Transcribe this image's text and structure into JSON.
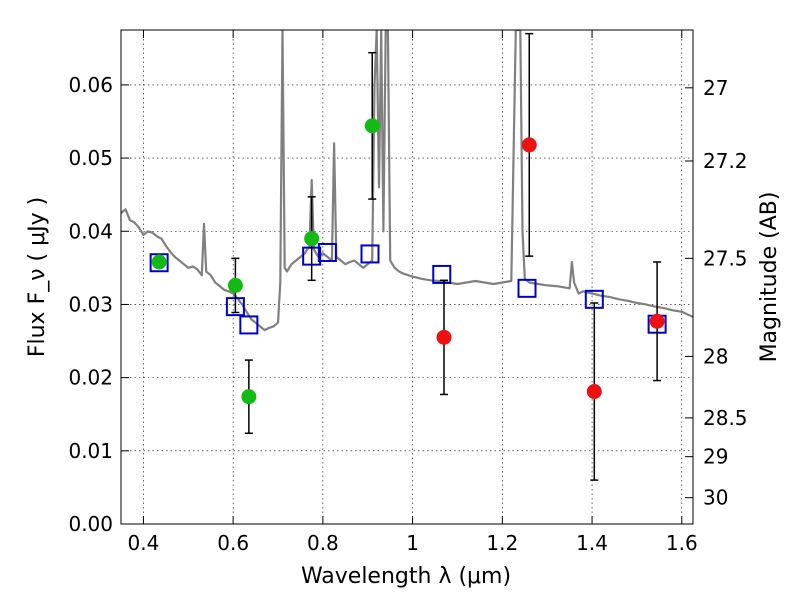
{
  "chart_data": {
    "type": "scatter",
    "xlabel": "Wavelength  λ (μm)",
    "ylabel": "Flux  F_ν  ( μJy )",
    "ylabel_right": "Magnitude (AB)",
    "xlim": [
      0.35,
      1.625
    ],
    "ylim": [
      0.0,
      0.0675
    ],
    "x_ticks": [
      0.4,
      0.6,
      0.8,
      1.0,
      1.2,
      1.4,
      1.6
    ],
    "x_tick_labels": [
      "0.4",
      "0.6",
      "0.8",
      "1",
      "1.2",
      "1.4",
      "1.6"
    ],
    "y_ticks": [
      0.0,
      0.01,
      0.02,
      0.03,
      0.04,
      0.05,
      0.06
    ],
    "y_tick_labels": [
      "0.00",
      "0.01",
      "0.02",
      "0.03",
      "0.04",
      "0.05",
      "0.06"
    ],
    "right_ticks": [
      {
        "flux": 0.0596,
        "label": "27"
      },
      {
        "flux": 0.0496,
        "label": "27.2"
      },
      {
        "flux": 0.0363,
        "label": "27.5"
      },
      {
        "flux": 0.0229,
        "label": "28"
      },
      {
        "flux": 0.0145,
        "label": "28.5"
      },
      {
        "flux": 0.0092,
        "label": "29"
      },
      {
        "flux": 0.0036,
        "label": "30"
      }
    ],
    "grid": true,
    "series": [
      {
        "kind": "line",
        "color": "#808080",
        "points": [
          [
            0.35,
            0.0425
          ],
          [
            0.36,
            0.043
          ],
          [
            0.37,
            0.0415
          ],
          [
            0.38,
            0.0412
          ],
          [
            0.39,
            0.0405
          ],
          [
            0.4,
            0.0395
          ],
          [
            0.41,
            0.04
          ],
          [
            0.42,
            0.0398
          ],
          [
            0.43,
            0.0393
          ],
          [
            0.44,
            0.039
          ],
          [
            0.45,
            0.038
          ],
          [
            0.46,
            0.0372
          ],
          [
            0.47,
            0.0365
          ],
          [
            0.48,
            0.036
          ],
          [
            0.49,
            0.0355
          ],
          [
            0.5,
            0.035
          ],
          [
            0.51,
            0.0352
          ],
          [
            0.52,
            0.0348
          ],
          [
            0.53,
            0.034
          ],
          [
            0.535,
            0.041
          ],
          [
            0.54,
            0.0345
          ],
          [
            0.55,
            0.034
          ],
          [
            0.56,
            0.033
          ],
          [
            0.57,
            0.0325
          ],
          [
            0.58,
            0.032
          ],
          [
            0.59,
            0.0318
          ],
          [
            0.6,
            0.0315
          ],
          [
            0.61,
            0.0308
          ],
          [
            0.62,
            0.03
          ],
          [
            0.63,
            0.029
          ],
          [
            0.64,
            0.028
          ],
          [
            0.65,
            0.0275
          ],
          [
            0.66,
            0.027
          ],
          [
            0.67,
            0.0265
          ],
          [
            0.68,
            0.0268
          ],
          [
            0.69,
            0.027
          ],
          [
            0.7,
            0.0275
          ],
          [
            0.705,
            0.033
          ],
          [
            0.71,
            0.0675
          ],
          [
            0.715,
            0.035
          ],
          [
            0.72,
            0.0345
          ],
          [
            0.73,
            0.0355
          ],
          [
            0.74,
            0.036
          ],
          [
            0.75,
            0.0365
          ],
          [
            0.76,
            0.037
          ],
          [
            0.77,
            0.038
          ],
          [
            0.775,
            0.047
          ],
          [
            0.78,
            0.0375
          ],
          [
            0.79,
            0.0365
          ],
          [
            0.8,
            0.037
          ],
          [
            0.81,
            0.0365
          ],
          [
            0.82,
            0.036
          ],
          [
            0.825,
            0.052
          ],
          [
            0.83,
            0.0365
          ],
          [
            0.84,
            0.036
          ],
          [
            0.85,
            0.0355
          ],
          [
            0.86,
            0.0358
          ],
          [
            0.87,
            0.036
          ],
          [
            0.88,
            0.0355
          ],
          [
            0.89,
            0.035
          ],
          [
            0.9,
            0.0355
          ],
          [
            0.91,
            0.036
          ],
          [
            0.915,
            0.06
          ],
          [
            0.92,
            0.0675
          ],
          [
            0.925,
            0.046
          ],
          [
            0.93,
            0.0675
          ],
          [
            0.935,
            0.04
          ],
          [
            0.94,
            0.0675
          ],
          [
            0.945,
            0.0675
          ],
          [
            0.95,
            0.036
          ],
          [
            0.96,
            0.035
          ],
          [
            0.97,
            0.0345
          ],
          [
            0.98,
            0.0342
          ],
          [
            0.99,
            0.034
          ],
          [
            1.0,
            0.0338
          ],
          [
            1.02,
            0.0335
          ],
          [
            1.04,
            0.0333
          ],
          [
            1.06,
            0.0332
          ],
          [
            1.08,
            0.033
          ],
          [
            1.1,
            0.0328
          ],
          [
            1.12,
            0.033
          ],
          [
            1.14,
            0.0332
          ],
          [
            1.16,
            0.033
          ],
          [
            1.18,
            0.0328
          ],
          [
            1.2,
            0.033
          ],
          [
            1.22,
            0.0332
          ],
          [
            1.225,
            0.05
          ],
          [
            1.23,
            0.0675
          ],
          [
            1.24,
            0.0675
          ],
          [
            1.245,
            0.04
          ],
          [
            1.25,
            0.0335
          ],
          [
            1.26,
            0.033
          ],
          [
            1.28,
            0.0328
          ],
          [
            1.3,
            0.0326
          ],
          [
            1.32,
            0.0325
          ],
          [
            1.34,
            0.0323
          ],
          [
            1.35,
            0.0322
          ],
          [
            1.355,
            0.0358
          ],
          [
            1.36,
            0.033
          ],
          [
            1.37,
            0.0315
          ],
          [
            1.38,
            0.0318
          ],
          [
            1.4,
            0.0315
          ],
          [
            1.42,
            0.0312
          ],
          [
            1.44,
            0.031
          ],
          [
            1.46,
            0.0307
          ],
          [
            1.48,
            0.0305
          ],
          [
            1.5,
            0.0302
          ],
          [
            1.52,
            0.03
          ],
          [
            1.54,
            0.0297
          ],
          [
            1.56,
            0.0295
          ],
          [
            1.58,
            0.0292
          ],
          [
            1.6,
            0.029
          ],
          [
            1.625,
            0.0283
          ]
        ]
      },
      {
        "kind": "open-square",
        "color": "#0000cc",
        "points": [
          [
            0.435,
            0.0357
          ],
          [
            0.605,
            0.0297
          ],
          [
            0.635,
            0.0272
          ],
          [
            0.775,
            0.0366
          ],
          [
            0.81,
            0.0371
          ],
          [
            0.905,
            0.0369
          ],
          [
            1.065,
            0.0341
          ],
          [
            1.255,
            0.0322
          ],
          [
            1.405,
            0.0307
          ],
          [
            1.545,
            0.0273
          ]
        ]
      },
      {
        "kind": "filled-circle",
        "color": "#11bb11",
        "points": [
          {
            "x": 0.435,
            "y": 0.0358
          },
          {
            "x": 0.605,
            "y": 0.0326,
            "err": 0.0037
          },
          {
            "x": 0.635,
            "y": 0.0174,
            "err": 0.005
          },
          {
            "x": 0.775,
            "y": 0.039,
            "err": 0.0057
          },
          {
            "x": 0.91,
            "y": 0.0544,
            "err": 0.01
          }
        ]
      },
      {
        "kind": "filled-circle",
        "color": "#ee1111",
        "points": [
          {
            "x": 1.07,
            "y": 0.0255,
            "err": 0.0078
          },
          {
            "x": 1.26,
            "y": 0.0518,
            "err": 0.0152
          },
          {
            "x": 1.405,
            "y": 0.0181,
            "err": 0.0121
          },
          {
            "x": 1.545,
            "y": 0.0277,
            "err": 0.0081
          }
        ]
      }
    ]
  }
}
